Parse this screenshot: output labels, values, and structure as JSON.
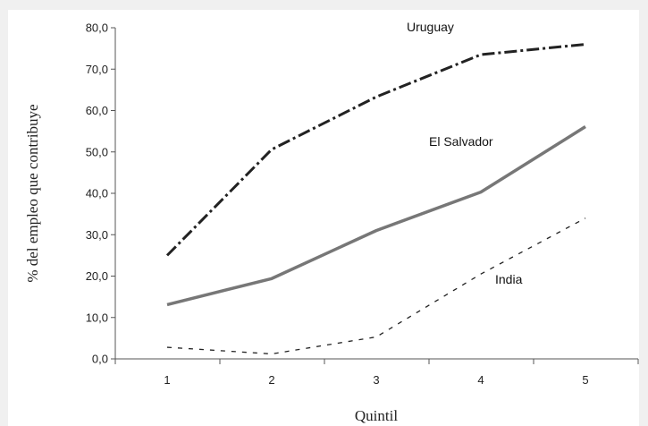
{
  "chart_data": {
    "type": "line",
    "xlabel": "Quintil",
    "ylabel": "% del empleo que contribuye",
    "categories": [
      "1",
      "2",
      "3",
      "4",
      "5"
    ],
    "ylim": [
      0,
      80
    ],
    "yticks": [
      "0,0",
      "10,0",
      "20,0",
      "30,0",
      "40,0",
      "50,0",
      "60,0",
      "70,0",
      "80,0"
    ],
    "ytick_values": [
      0,
      10,
      20,
      30,
      40,
      50,
      60,
      70,
      80
    ],
    "grid": false,
    "series": [
      {
        "name": "Uruguay",
        "values": [
          25.0,
          50.6,
          63.3,
          73.5,
          76.0
        ],
        "color": "#222222",
        "style": "dash-dot"
      },
      {
        "name": "El Salvador",
        "values": [
          13.1,
          19.4,
          31.0,
          40.3,
          56.1
        ],
        "color": "#777777",
        "style": "solid"
      },
      {
        "name": "India",
        "values": [
          2.8,
          1.2,
          5.3,
          20.5,
          34.0
        ],
        "color": "#222222",
        "style": "dashed"
      }
    ]
  }
}
